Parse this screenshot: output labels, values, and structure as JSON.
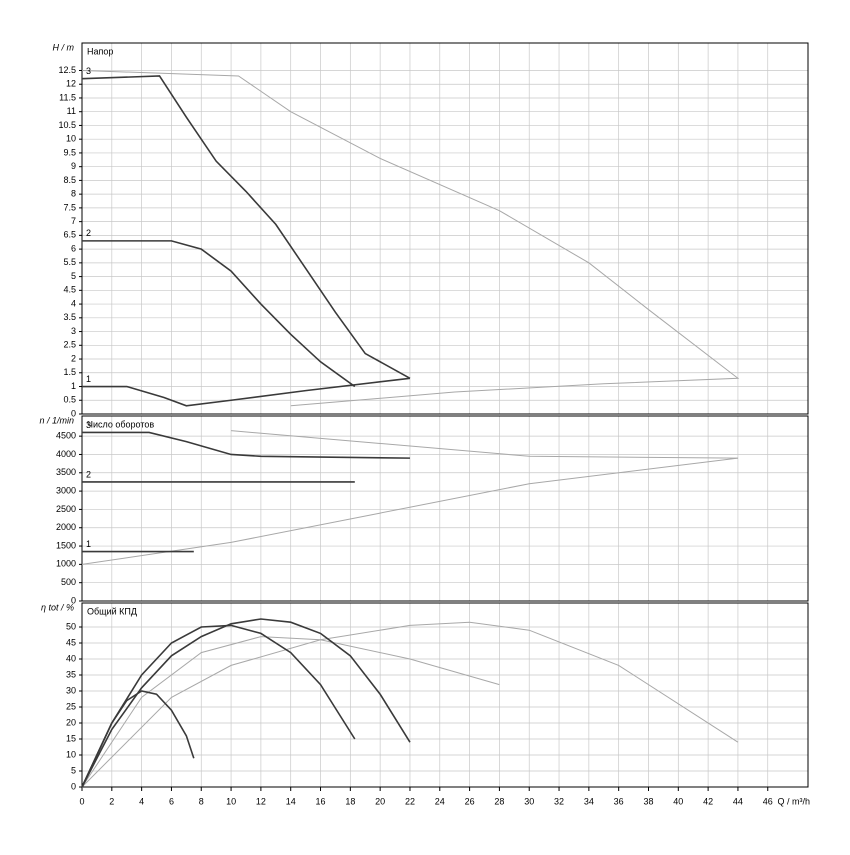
{
  "chart_data": [
    {
      "type": "line",
      "title": "Напор",
      "ylabel": "H / m",
      "xlim": [
        0,
        48.7
      ],
      "ylim": [
        0,
        13.5
      ],
      "yticks": [
        0,
        0.5,
        1,
        1.5,
        2,
        2.5,
        3,
        3.5,
        4,
        4.5,
        5,
        5.5,
        6,
        6.5,
        7,
        7.5,
        8,
        8.5,
        9,
        9.5,
        10,
        10.5,
        11,
        11.5,
        12,
        12.5
      ],
      "grid": true,
      "series": [
        {
          "color": "#a8a8a8",
          "x": [
            0,
            10.5,
            14,
            20,
            28,
            34,
            38,
            44,
            35,
            25,
            14
          ],
          "values": [
            12.5,
            12.3,
            11,
            9.3,
            7.4,
            5.5,
            3.8,
            1.3,
            1.1,
            0.8,
            0.3
          ]
        },
        {
          "label": "3",
          "color": "#3a3a3a",
          "x": [
            0,
            5.2,
            7,
            9,
            11,
            13,
            15,
            17,
            19,
            22
          ],
          "values": [
            12.2,
            12.3,
            10.8,
            9.2,
            8.1,
            6.9,
            5.3,
            3.7,
            2.2,
            1.3
          ]
        },
        {
          "label": "2",
          "color": "#3a3a3a",
          "x": [
            0,
            6,
            8,
            10,
            12,
            14,
            16,
            18.3
          ],
          "values": [
            6.3,
            6.3,
            6.0,
            5.2,
            4.0,
            2.9,
            1.9,
            1.0
          ]
        },
        {
          "label": "1",
          "color": "#3a3a3a",
          "x": [
            0,
            3,
            5.5,
            7,
            10,
            15,
            22
          ],
          "values": [
            1.0,
            1.0,
            0.6,
            0.3,
            0.5,
            0.85,
            1.3
          ]
        }
      ]
    },
    {
      "type": "line",
      "title": "Число оборотов",
      "ylabel": "n / 1/min",
      "xlim": [
        0,
        48.7
      ],
      "ylim": [
        0,
        5050
      ],
      "yticks": [
        0,
        500,
        1000,
        1500,
        2000,
        2500,
        3000,
        3500,
        4000,
        4500
      ],
      "grid": true,
      "series": [
        {
          "color": "#a8a8a8",
          "x": [
            0,
            10,
            20,
            30,
            44
          ],
          "values": [
            1000,
            1600,
            2400,
            3200,
            3900
          ]
        },
        {
          "color": "#a8a8a8",
          "x": [
            10,
            20,
            30,
            44
          ],
          "values": [
            4650,
            4300,
            3950,
            3900
          ]
        },
        {
          "label": "3",
          "color": "#3a3a3a",
          "x": [
            0,
            4.5,
            7,
            10,
            12,
            22
          ],
          "values": [
            4600,
            4600,
            4350,
            4000,
            3950,
            3900
          ]
        },
        {
          "label": "2",
          "color": "#3a3a3a",
          "x": [
            0,
            18.3
          ],
          "values": [
            3250,
            3250
          ]
        },
        {
          "label": "1",
          "color": "#3a3a3a",
          "x": [
            0,
            7.5
          ],
          "values": [
            1350,
            1350
          ]
        }
      ]
    },
    {
      "type": "line",
      "title": "Общий КПД",
      "ylabel": "η tot / %",
      "xlabel": "Q / m³/h",
      "xlim": [
        0,
        48.7
      ],
      "ylim": [
        0,
        57.5
      ],
      "yticks": [
        0,
        5,
        10,
        15,
        20,
        25,
        30,
        35,
        40,
        45,
        50
      ],
      "grid": true,
      "xticks": [
        0,
        2,
        4,
        6,
        8,
        10,
        12,
        14,
        16,
        18,
        20,
        22,
        24,
        26,
        28,
        30,
        32,
        34,
        36,
        38,
        40,
        42,
        44,
        46
      ],
      "series": [
        {
          "color": "#a8a8a8",
          "x": [
            0,
            6,
            10,
            16,
            22,
            26,
            30,
            36,
            44
          ],
          "values": [
            0,
            28,
            38,
            46,
            50.5,
            51.5,
            49,
            38,
            14
          ]
        },
        {
          "color": "#a8a8a8",
          "x": [
            0,
            4,
            8,
            12,
            16,
            22,
            28
          ],
          "values": [
            0,
            28,
            42,
            47,
            46,
            40,
            32
          ]
        },
        {
          "color": "#3a3a3a",
          "x": [
            0,
            2,
            4,
            6,
            8,
            10,
            12,
            14,
            16,
            18,
            20,
            22
          ],
          "values": [
            0,
            18,
            31,
            41,
            47,
            51,
            52.5,
            51.5,
            48,
            41,
            29,
            14
          ]
        },
        {
          "color": "#3a3a3a",
          "x": [
            0,
            2,
            4,
            6,
            8,
            10,
            12,
            14,
            16,
            18.3
          ],
          "values": [
            0,
            20,
            35,
            45,
            50,
            50.5,
            48,
            42,
            32,
            15
          ]
        },
        {
          "color": "#3a3a3a",
          "x": [
            0,
            1,
            2,
            3,
            4,
            5,
            6,
            7,
            7.5
          ],
          "values": [
            0,
            10,
            20,
            27,
            30,
            29,
            24,
            16,
            9
          ]
        }
      ]
    }
  ]
}
